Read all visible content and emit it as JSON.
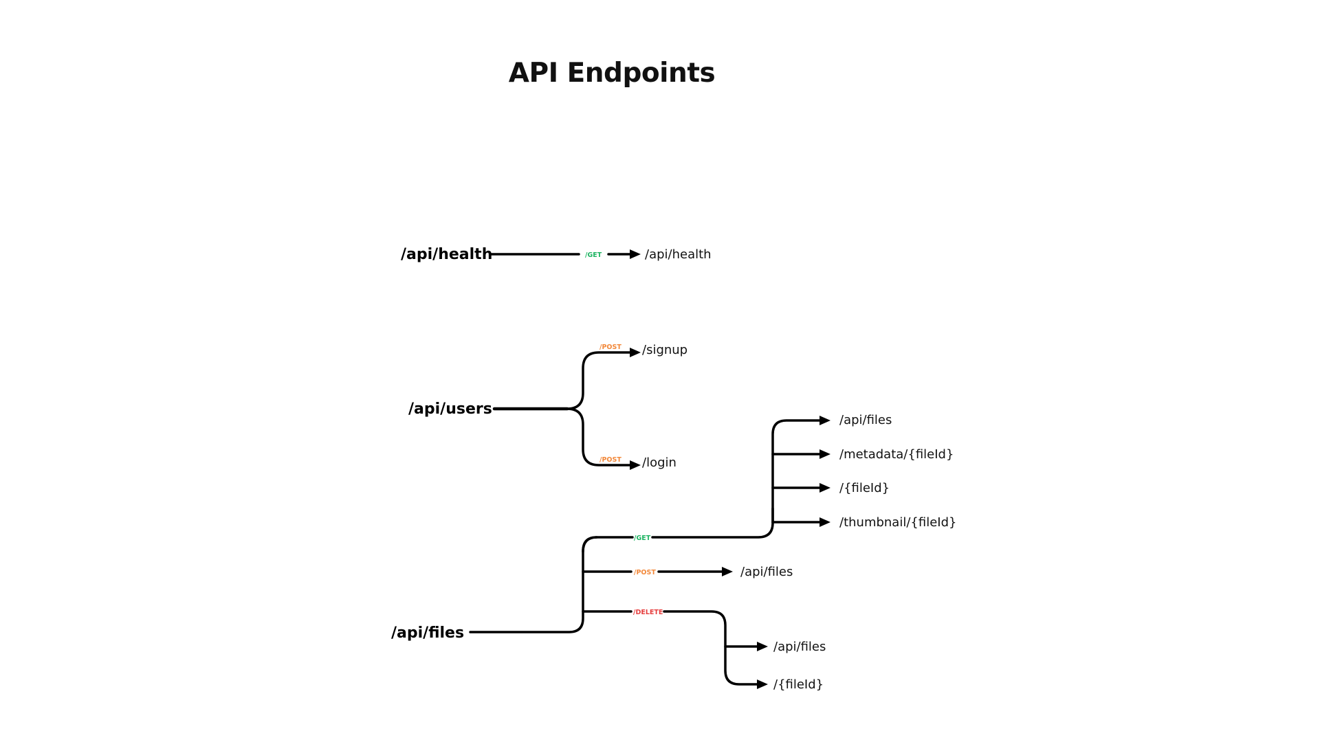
{
  "title": "API Endpoints",
  "colors": {
    "get": "#1fb463",
    "post": "#f2883a",
    "delete": "#e63e3e",
    "line": "#000000"
  },
  "groups": {
    "health": {
      "root": "/api/health",
      "get": {
        "method": "/GET",
        "endpoint": "/api/health"
      }
    },
    "users": {
      "root": "/api/users",
      "signup": {
        "method": "/POST",
        "endpoint": "/signup"
      },
      "login": {
        "method": "/POST",
        "endpoint": "/login"
      }
    },
    "files": {
      "root": "/api/files",
      "get": {
        "method": "/GET",
        "endpoints": [
          "/api/files",
          "/metadata/{fileId}",
          "/{fileId}",
          "/thumbnail/{fileId}"
        ]
      },
      "post": {
        "method": "/POST",
        "endpoint": "/api/files"
      },
      "delete": {
        "method": "/DELETE",
        "endpoints": [
          "/api/files",
          "/{fileId}"
        ]
      }
    }
  }
}
